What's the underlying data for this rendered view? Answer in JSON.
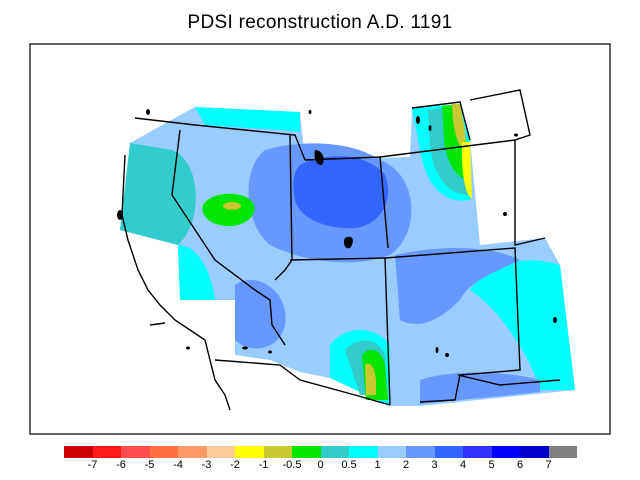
{
  "title": "PDSI reconstruction A.D. 1191",
  "legend": {
    "colors": [
      "#cc0000",
      "#ff1a1a",
      "#ff4d4d",
      "#ff7040",
      "#ff9966",
      "#ffcc99",
      "#ffff00",
      "#c8c832",
      "#00e600",
      "#33cccc",
      "#00ffff",
      "#99ccff",
      "#6699ff",
      "#3366ff",
      "#3333ff",
      "#0000ff",
      "#0000cc",
      "#808080"
    ],
    "labels": [
      "-7",
      "-6",
      "-5",
      "-4",
      "-3",
      "-2",
      "-1",
      "-0.5",
      "0",
      "0.5",
      "1",
      "2",
      "3",
      "4",
      "5",
      "6",
      "7"
    ]
  },
  "field_values": {
    "utah_wyoming_core": "4",
    "nevada_east": "2",
    "north_idaho": "1",
    "california_coast": "0.5",
    "northeast_nevada_dry_spot": "0",
    "arizona_dry_tongue": "0",
    "colorado_east_plains": "1",
    "east_montana_dry_band": "-1",
    "new_mexico_east": "3"
  }
}
